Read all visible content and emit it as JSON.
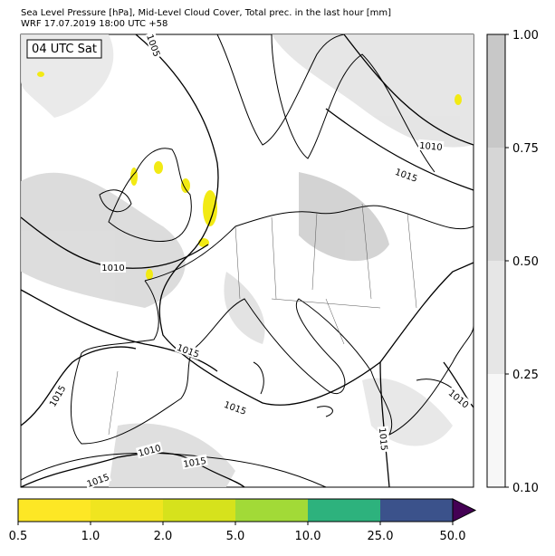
{
  "header": {
    "title": "Sea Level Pressure [hPa], Mid-Level Cloud Cover, Total prec. in the last hour [mm]",
    "subtitle": "WRF 17.07.2019 18:00 UTC +58"
  },
  "map": {
    "time_label": "04 UTC Sat",
    "isobar_labels": [
      "1005",
      "1010",
      "1015",
      "1010",
      "1015",
      "1015",
      "1015",
      "1015",
      "1010",
      "1015",
      "1015",
      "1010"
    ]
  },
  "cloud_colorbar": {
    "ticks": [
      "0.10",
      "0.25",
      "0.50",
      "0.75",
      "1.00"
    ],
    "colors": [
      "#f7f7f7",
      "#e6e6e6",
      "#d6d6d6",
      "#c8c8c8"
    ]
  },
  "precip_colorbar": {
    "ticks": [
      "0.5",
      "1.0",
      "2.0",
      "5.0",
      "10.0",
      "25.0",
      "50.0"
    ],
    "colors": [
      "#fde725",
      "#f0e51f",
      "#d6e21c",
      "#a2da37",
      "#2db27d",
      "#3b528b"
    ],
    "extend_color": "#440154"
  }
}
